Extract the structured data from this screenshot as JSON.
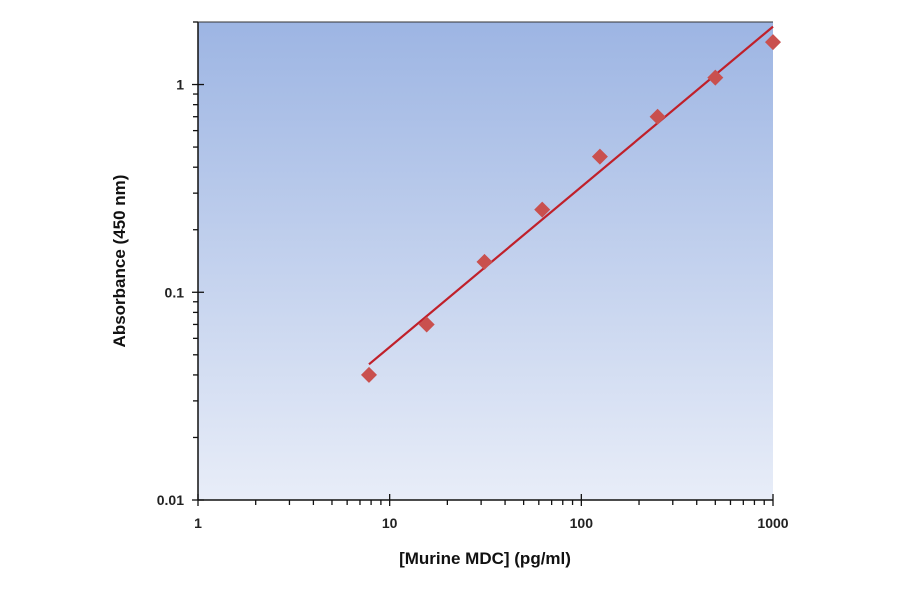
{
  "chart_data": {
    "type": "scatter",
    "title": "",
    "xlabel": "[Murine MDC] (pg/ml)",
    "ylabel": "Absorbance (450 nm)",
    "x_scale": "log",
    "y_scale": "log",
    "xlim": [
      1,
      1000
    ],
    "ylim": [
      0.01,
      2
    ],
    "x_ticks": [
      "1",
      "10",
      "100",
      "1000"
    ],
    "y_ticks": [
      "0.01",
      "0.1",
      "1"
    ],
    "grid": false,
    "legend": "none",
    "background": {
      "top": "#9db5e3",
      "bottom": "#e8edf8"
    },
    "series": [
      {
        "marker": "diamond",
        "color": "#c9504e",
        "x": [
          7.8,
          15.6,
          31.25,
          62.5,
          125,
          250,
          500,
          1000
        ],
        "y": [
          0.04,
          0.07,
          0.14,
          0.25,
          0.45,
          0.7,
          1.08,
          1.6
        ]
      }
    ],
    "fit_line": {
      "color": "#c0202a",
      "x": [
        7.8,
        1000
      ],
      "y": [
        0.045,
        1.9
      ]
    }
  }
}
